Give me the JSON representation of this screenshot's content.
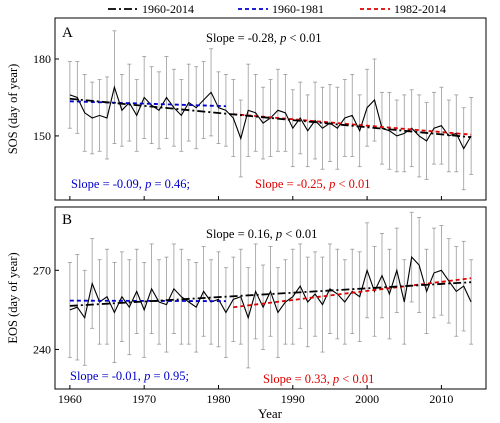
{
  "legend": {
    "items": [
      {
        "label": "1960-2014",
        "color": "#000000",
        "dash": "dashdot"
      },
      {
        "label": "1960-1981",
        "color": "#0000cc",
        "dash": "dash"
      },
      {
        "label": "1982-2014",
        "color": "#dd0000",
        "dash": "dash"
      }
    ]
  },
  "xlabel": "Year",
  "colors": {
    "obs": "#000000",
    "err": "#9a9a9a",
    "all": "#000000",
    "early": "#0000cc",
    "late": "#dd0000"
  },
  "chart_data": [
    {
      "type": "line",
      "panel": "A",
      "ylabel": "SOS (day of year)",
      "xlim": [
        1958,
        2016
      ],
      "ylim": [
        125,
        196
      ],
      "xticks": [
        1960,
        1970,
        1980,
        1990,
        2000,
        2010
      ],
      "yticks": [
        150,
        180
      ],
      "annotations": {
        "all": {
          "prefix": "Slope = -0.28, ",
          "p": "p",
          "suffix": " < 0.01"
        },
        "early": {
          "prefix": "Slope = -0.09, ",
          "p": "p",
          "suffix": " = 0.46;"
        },
        "late": {
          "prefix": "Slope = -0.25, ",
          "p": "p",
          "suffix": " < 0.01"
        }
      },
      "x": [
        1960,
        1961,
        1962,
        1963,
        1964,
        1965,
        1966,
        1967,
        1968,
        1969,
        1970,
        1971,
        1972,
        1973,
        1974,
        1975,
        1976,
        1977,
        1978,
        1979,
        1980,
        1981,
        1982,
        1983,
        1984,
        1985,
        1986,
        1987,
        1988,
        1989,
        1990,
        1991,
        1992,
        1993,
        1994,
        1995,
        1996,
        1997,
        1998,
        1999,
        2000,
        2001,
        2002,
        2003,
        2004,
        2005,
        2006,
        2007,
        2008,
        2009,
        2010,
        2011,
        2012,
        2013,
        2014
      ],
      "y": [
        166,
        165,
        159,
        157,
        158,
        157,
        169,
        160,
        163,
        158,
        165,
        162,
        160,
        165,
        161,
        158,
        163,
        161,
        164,
        167,
        161,
        160,
        157,
        149,
        160,
        159,
        155,
        157,
        160,
        159,
        153,
        157,
        152,
        156,
        153,
        155,
        153,
        157,
        158,
        152,
        161,
        164,
        153,
        152,
        150,
        151,
        153,
        150,
        148,
        153,
        154,
        150,
        151,
        145,
        150
      ],
      "err": [
        13,
        14,
        15,
        14,
        14,
        16,
        22,
        14,
        15,
        14,
        16,
        15,
        15,
        16,
        15,
        14,
        15,
        16,
        15,
        17,
        14,
        14,
        15,
        15,
        18,
        15,
        14,
        15,
        16,
        15,
        15,
        14,
        14,
        15,
        16,
        15,
        16,
        15,
        16,
        14,
        15,
        16,
        14,
        15,
        14,
        15,
        15,
        16,
        15,
        14,
        15,
        14,
        15,
        16,
        15
      ],
      "trend_all": {
        "range": [
          1960,
          2014
        ],
        "y_start": 164.5,
        "y_end": 149.5
      },
      "trend_early": {
        "range": [
          1960,
          1981
        ],
        "y_start": 163.5,
        "y_end": 161.6
      },
      "trend_late": {
        "range": [
          1982,
          2014
        ],
        "y_start": 158.5,
        "y_end": 150.5
      }
    },
    {
      "type": "line",
      "panel": "B",
      "ylabel": "EOS (day of year)",
      "xlim": [
        1958,
        2016
      ],
      "ylim": [
        225,
        294
      ],
      "xticks": [
        1960,
        1970,
        1980,
        1990,
        2000,
        2010
      ],
      "yticks": [
        240,
        270
      ],
      "annotations": {
        "all": {
          "prefix": "Slope = 0.16, ",
          "p": "p",
          "suffix": " < 0.01"
        },
        "early": {
          "prefix": "Slope = -0.01, ",
          "p": "p",
          "suffix": " = 0.95;"
        },
        "late": {
          "prefix": "Slope = 0.33, ",
          "p": "p",
          "suffix": " < 0.01"
        }
      },
      "x": [
        1960,
        1961,
        1962,
        1963,
        1964,
        1965,
        1966,
        1967,
        1968,
        1969,
        1970,
        1971,
        1972,
        1973,
        1974,
        1975,
        1976,
        1977,
        1978,
        1979,
        1980,
        1981,
        1982,
        1983,
        1984,
        1985,
        1986,
        1987,
        1988,
        1989,
        1990,
        1991,
        1992,
        1993,
        1994,
        1995,
        1996,
        1997,
        1998,
        1999,
        2000,
        2001,
        2002,
        2003,
        2004,
        2005,
        2006,
        2007,
        2008,
        2009,
        2010,
        2011,
        2012,
        2013,
        2014
      ],
      "y": [
        255,
        256,
        252,
        265,
        258,
        260,
        254,
        260,
        256,
        262,
        255,
        263,
        258,
        257,
        263,
        260,
        258,
        256,
        262,
        258,
        259,
        254,
        259,
        260,
        252,
        262,
        256,
        262,
        254,
        258,
        260,
        264,
        258,
        261,
        257,
        263,
        261,
        258,
        262,
        260,
        270,
        262,
        268,
        261,
        270,
        258,
        275,
        272,
        262,
        269,
        270,
        266,
        262,
        264,
        258
      ],
      "err": [
        18,
        20,
        18,
        17,
        16,
        18,
        19,
        17,
        18,
        16,
        18,
        17,
        16,
        18,
        17,
        18,
        16,
        17,
        17,
        16,
        18,
        17,
        16,
        18,
        19,
        18,
        16,
        17,
        17,
        16,
        18,
        16,
        17,
        16,
        18,
        17,
        17,
        16,
        16,
        17,
        18,
        17,
        16,
        17,
        16,
        16,
        17,
        18,
        16,
        17,
        17,
        16,
        17,
        17,
        16
      ],
      "trend_all": {
        "range": [
          1960,
          2014
        ],
        "y_start": 256.5,
        "y_end": 265.5
      },
      "trend_early": {
        "range": [
          1960,
          1981
        ],
        "y_start": 258.5,
        "y_end": 258.3
      },
      "trend_late": {
        "range": [
          1982,
          2014
        ],
        "y_start": 256,
        "y_end": 267
      }
    }
  ]
}
